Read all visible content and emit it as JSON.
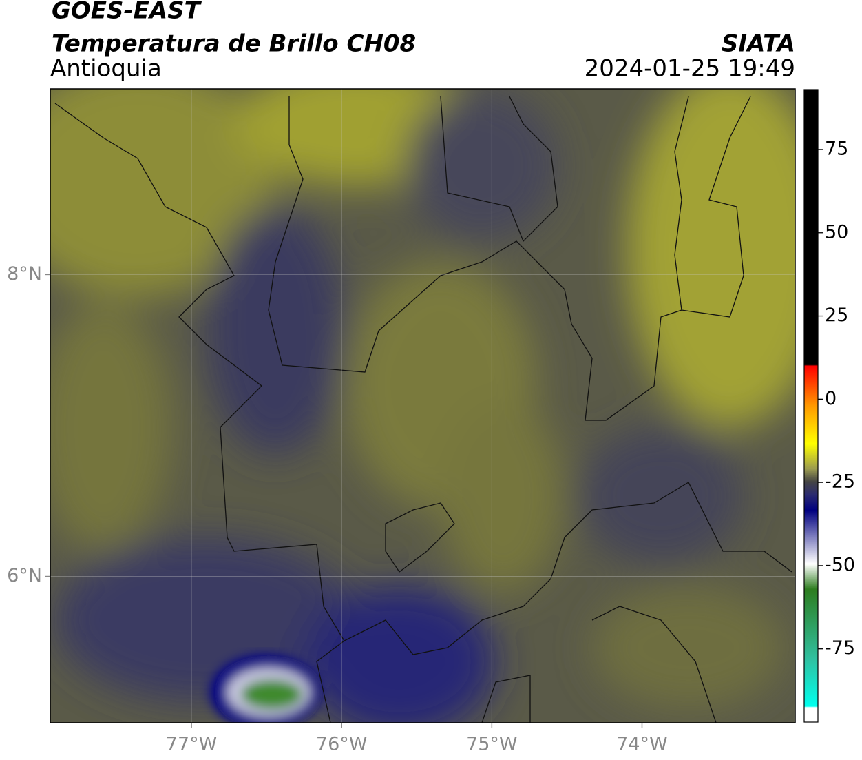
{
  "header": {
    "title": "GOES-EAST",
    "subtitle": "Temperatura de Brillo CH08",
    "region": "Antioquia",
    "source": "SIATA",
    "datetime": "2024-01-25 19:49"
  },
  "map": {
    "lonlim": [
      -77.94,
      -72.98
    ],
    "latlim": [
      5.03,
      9.23
    ],
    "lon_ticks": [
      {
        "value": -77,
        "label": "77°W"
      },
      {
        "value": -76,
        "label": "76°W"
      },
      {
        "value": -75,
        "label": "75°W"
      },
      {
        "value": -74,
        "label": "74°W"
      }
    ],
    "lat_ticks": [
      {
        "value": 8,
        "label": "8°N"
      },
      {
        "value": 6,
        "label": "6°N"
      }
    ],
    "grid": true
  },
  "colorbar": {
    "lim": [
      -97,
      93
    ],
    "ticks": [
      75,
      50,
      25,
      0,
      -25,
      -50,
      -75
    ]
  }
}
